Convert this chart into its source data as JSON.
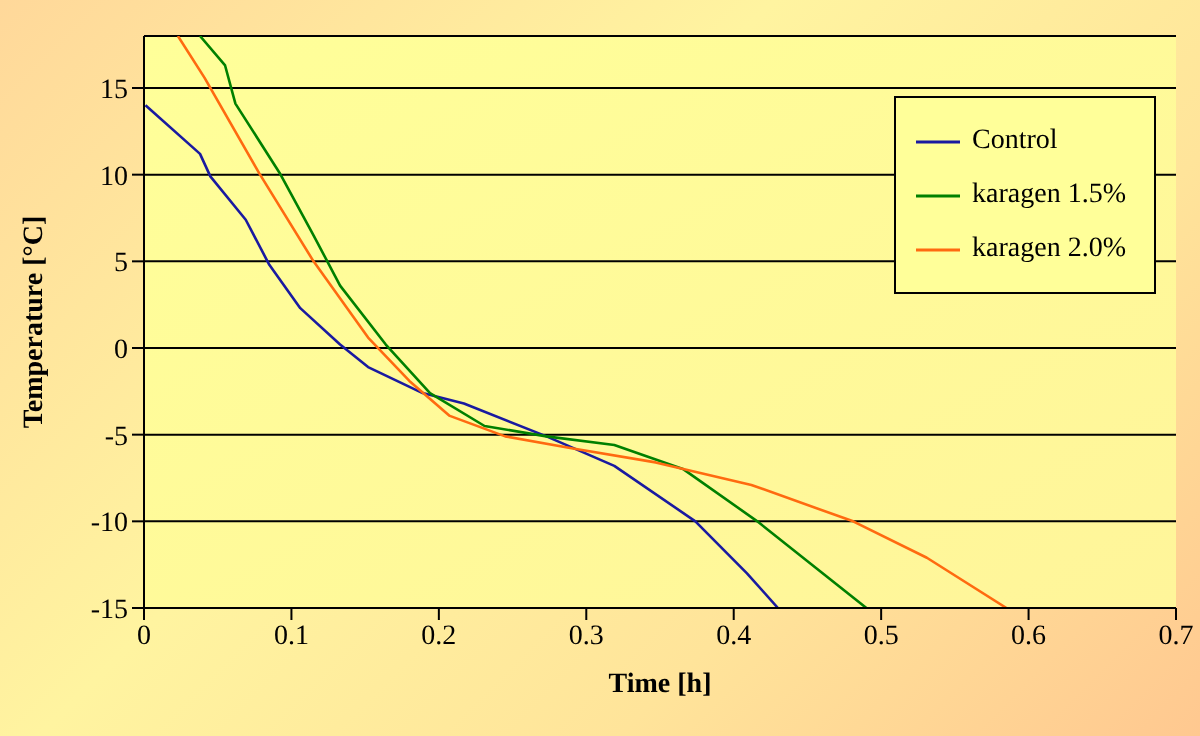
{
  "chart_data": {
    "type": "line",
    "xlabel": "Time [h]",
    "ylabel": "Temperature [°C]",
    "xlim": [
      0,
      0.7
    ],
    "xticks": [
      0,
      0.1,
      0.2,
      0.3,
      0.4,
      0.5,
      0.6,
      0.7
    ],
    "ylim": [
      -15,
      18
    ],
    "yticks": [
      -15,
      -10,
      -5,
      0,
      5,
      10,
      15
    ],
    "grid": "y",
    "legend": "top right",
    "marker": "none",
    "line_style": "solid",
    "series": [
      {
        "name": "Control",
        "color": "#1a1aa0",
        "x": [
          0.001,
          0.038,
          0.045,
          0.069,
          0.085,
          0.106,
          0.133,
          0.152,
          0.189,
          0.217,
          0.273,
          0.319,
          0.374,
          0.409,
          0.43
        ],
        "values": [
          14,
          11.2,
          9.9,
          7.4,
          4.8,
          2.3,
          0.2,
          -1.1,
          -2.6,
          -3.2,
          -5.1,
          -6.8,
          -10,
          -13,
          -15
        ]
      },
      {
        "name": "karagen 1.5%",
        "color": "#008000",
        "x": [
          0.038,
          0.055,
          0.062,
          0.092,
          0.115,
          0.133,
          0.164,
          0.194,
          0.231,
          0.273,
          0.319,
          0.366,
          0.416,
          0.49
        ],
        "values": [
          18,
          16.3,
          14.1,
          10.1,
          6.5,
          3.6,
          0.2,
          -2.6,
          -4.5,
          -5.1,
          -5.6,
          -7,
          -10,
          -15
        ]
      },
      {
        "name": "karagen 2.0%",
        "color": "#ff6a10",
        "x": [
          0.023,
          0.041,
          0.078,
          0.115,
          0.152,
          0.18,
          0.207,
          0.245,
          0.291,
          0.347,
          0.412,
          0.481,
          0.531,
          0.585
        ],
        "values": [
          18,
          15.6,
          10.1,
          5,
          0.6,
          -1.9,
          -3.9,
          -5.1,
          -5.8,
          -6.6,
          -7.9,
          -10,
          -12.1,
          -15
        ]
      }
    ]
  }
}
